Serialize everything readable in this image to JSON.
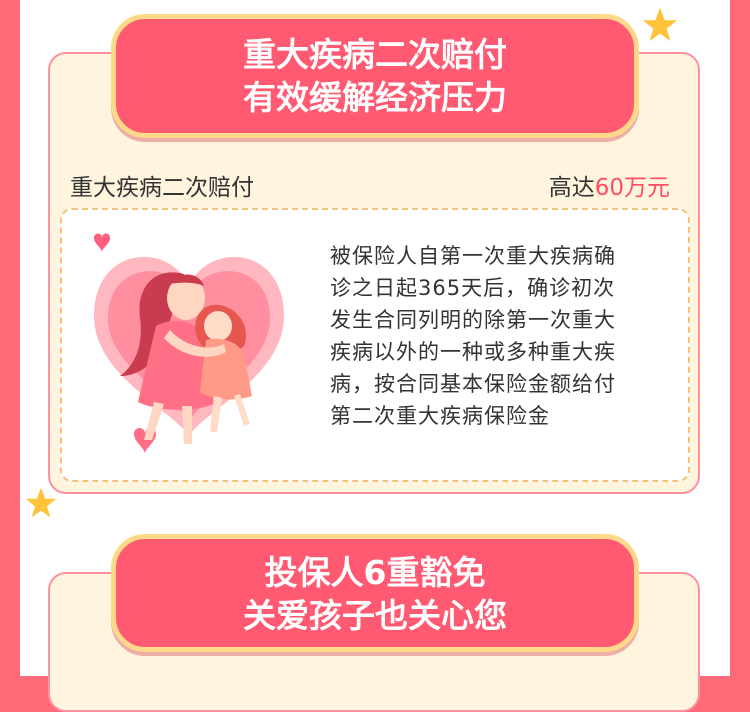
{
  "banner_1": {
    "line_1": "重大疾病二次赔付",
    "line_2": "有效缓解经济压力"
  },
  "benefit_row": {
    "name": "重大疾病二次赔付",
    "amount_prefix": "高达",
    "amount_value": "60万元"
  },
  "description": {
    "lines": [
      "被保险人自第一次重大疾病确",
      "诊之日起365天后，确诊初次",
      "发生合同列明的除第一次重大",
      "疾病以外的一种或多种重大疾",
      "病，按合同基本保险金额给付",
      "第二次重大疾病保险金"
    ]
  },
  "banner_2": {
    "line_1": "投保人6重豁免",
    "line_2": "关爱孩子也关心您"
  },
  "colors": {
    "background": "#ff6a78",
    "banner": "#ff5a72",
    "banner_border": "#ffd98a",
    "highlight": "#ff4e60",
    "card": "#fff4dd"
  },
  "icons": [
    "star-icon",
    "heart-icon",
    "mother-child-hug-illustration"
  ]
}
